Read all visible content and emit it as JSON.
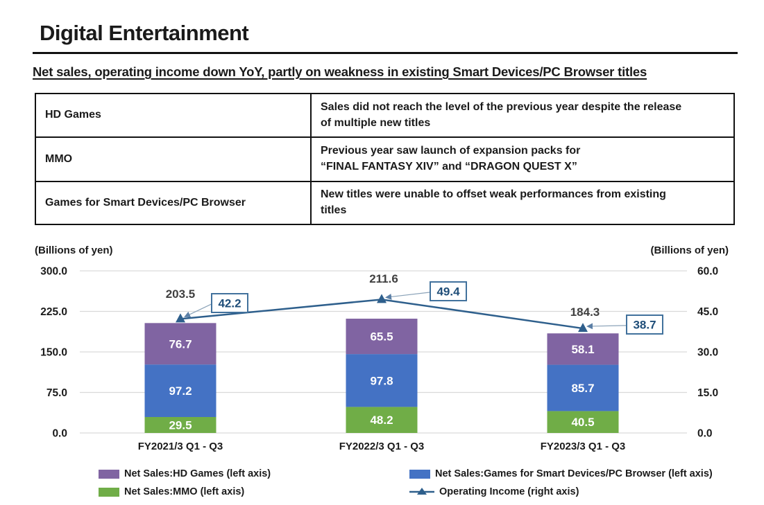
{
  "page": {
    "title": "Digital Entertainment",
    "subtitle": "Net sales, operating income down YoY, partly on weakness in existing Smart Devices/PC Browser titles"
  },
  "table": {
    "rows": [
      {
        "label": "HD Games",
        "description": "Sales did not reach the level of the previous year despite the release\nof multiple new titles"
      },
      {
        "label": "MMO",
        "description": "Previous year saw launch of expansion packs for\n“FINAL FANTASY XIV” and “DRAGON QUEST X”"
      },
      {
        "label": "Games for Smart Devices/PC Browser",
        "description": "New titles were unable to offset weak performances from existing\ntitles"
      }
    ]
  },
  "chart_data": {
    "type": "bar",
    "subtype": "stacked-bars-with-line",
    "title": "",
    "categories": [
      "FY2021/3 Q1 - Q3",
      "FY2022/3 Q1 - Q3",
      "FY2023/3 Q1 - Q3"
    ],
    "left_axis": {
      "title": "(Billions of yen)",
      "range": [
        0,
        300
      ],
      "ticks": [
        0,
        75,
        150,
        225,
        300
      ],
      "tick_labels": [
        "0.0",
        "75.0",
        "150.0",
        "225.0",
        "300.0"
      ]
    },
    "right_axis": {
      "title": "(Billions of yen)",
      "range": [
        0,
        60
      ],
      "ticks": [
        0,
        15,
        30,
        45,
        60
      ],
      "tick_labels": [
        "0.0",
        "15.0",
        "30.0",
        "45.0",
        "60.0"
      ]
    },
    "series": [
      {
        "name": "Net Sales:MMO (left axis)",
        "type": "bar-segment",
        "stack_order": "bottom",
        "color": "#70ad47",
        "values": [
          29.5,
          48.2,
          40.5
        ]
      },
      {
        "name": "Net Sales:Games for Smart Devices/PC Browser (left axis)",
        "type": "bar-segment",
        "stack_order": "middle",
        "color": "#4472c4",
        "values": [
          97.2,
          97.8,
          85.7
        ]
      },
      {
        "name": "Net Sales:HD Games (left axis)",
        "type": "bar-segment",
        "stack_order": "top",
        "color": "#8064a2",
        "values": [
          76.7,
          65.5,
          58.1
        ]
      },
      {
        "name": "Operating Income (right axis)",
        "type": "line",
        "axis": "right",
        "color": "#2e5f8c",
        "values": [
          42.2,
          49.4,
          38.7
        ]
      }
    ],
    "totals": [
      203.5,
      211.6,
      184.3
    ],
    "grid": true,
    "legend_position": "bottom",
    "colors": {
      "gridline": "#d9d9d9",
      "total_label": "#404040",
      "segment_label": "#ffffff",
      "callout_border": "#41719c",
      "callout_text": "#1f4e79",
      "connector": "#5b7fa6"
    }
  },
  "legend": {
    "items": [
      {
        "label": "Net Sales:HD Games (left axis)",
        "color": "#8064a2",
        "marker": "swatch"
      },
      {
        "label": "Net Sales:Games for Smart Devices/PC Browser (left axis)",
        "color": "#4472c4",
        "marker": "swatch"
      },
      {
        "label": "Net Sales:MMO (left axis)",
        "color": "#70ad47",
        "marker": "swatch"
      },
      {
        "label": "Operating Income (right axis)",
        "color": "#2e5f8c",
        "marker": "line-triangle"
      }
    ]
  }
}
